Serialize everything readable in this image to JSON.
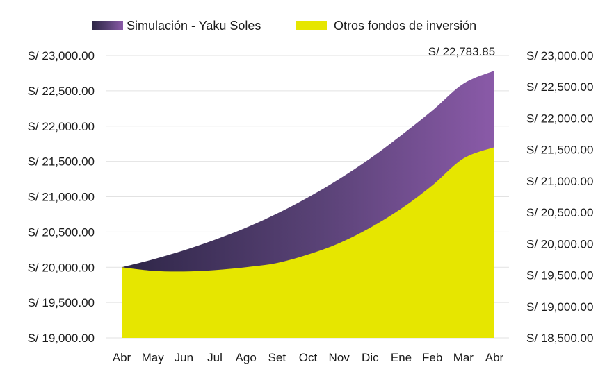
{
  "chart_data": {
    "type": "area",
    "categories": [
      "Abr",
      "May",
      "Jun",
      "Jul",
      "Ago",
      "Set",
      "Oct",
      "Nov",
      "Dic",
      "Ene",
      "Feb",
      "Mar",
      "Abr"
    ],
    "series": [
      {
        "name": "Simulación - Yaku Soles",
        "axis": "left",
        "color": "#6a4a8c",
        "values": [
          20000,
          20110,
          20240,
          20390,
          20560,
          20760,
          20990,
          21250,
          21540,
          21870,
          22220,
          22600,
          22783.85
        ]
      },
      {
        "name": "Otros fondos de inversión",
        "axis": "left",
        "color": "#e6e600",
        "values": [
          20000,
          19950,
          19940,
          19960,
          20000,
          20060,
          20180,
          20340,
          20560,
          20830,
          21160,
          21540,
          21700
        ]
      }
    ],
    "left_axis": {
      "ylim": [
        19000,
        23000
      ],
      "ticks": [
        23000,
        22500,
        22000,
        21500,
        21000,
        20500,
        20000,
        19500,
        19000
      ],
      "tick_labels": [
        "S/ 23,000.00",
        "S/ 22,500.00",
        "S/ 22,000.00",
        "S/ 21,500.00",
        "S/ 21,000.00",
        "S/ 20,500.00",
        "S/ 20,000.00",
        "S/ 19,500.00",
        "S/ 19,000.00"
      ]
    },
    "right_axis": {
      "ylim": [
        18500,
        23000
      ],
      "ticks": [
        23000,
        22500,
        22000,
        21500,
        21000,
        20500,
        20000,
        19500,
        19000,
        18500
      ],
      "tick_labels": [
        "S/ 23,000.00",
        "S/ 22,500.00",
        "S/ 22,000.00",
        "S/ 21,500.00",
        "S/ 21,000.00",
        "S/ 20,500.00",
        "S/ 20,000.00",
        "S/ 19,500.00",
        "S/ 19,000.00",
        "S/ 18,500.00"
      ]
    },
    "annotation": {
      "text": "S/ 22,783.85",
      "category_index": 12,
      "value": 22783.85
    },
    "grid": true,
    "legend_position": "top"
  }
}
